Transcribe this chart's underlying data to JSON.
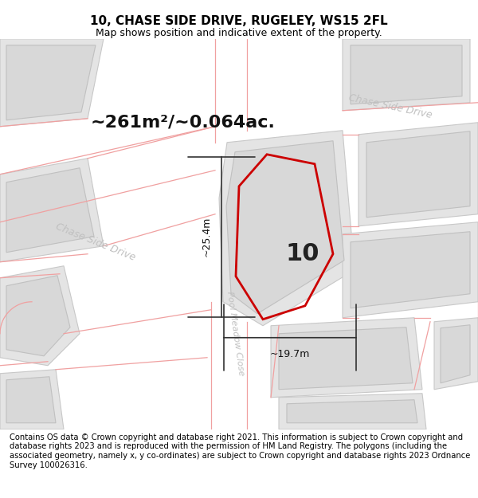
{
  "title": "10, CHASE SIDE DRIVE, RUGELEY, WS15 2FL",
  "subtitle": "Map shows position and indicative extent of the property.",
  "area_text": "~261m²/~0.064ac.",
  "dim_width": "~19.7m",
  "dim_height": "~25.4m",
  "label_number": "10",
  "footer": "Contains OS data © Crown copyright and database right 2021. This information is subject to Crown copyright and database rights 2023 and is reproduced with the permission of HM Land Registry. The polygons (including the associated geometry, namely x, y co-ordinates) are subject to Crown copyright and database rights 2023 Ordnance Survey 100026316.",
  "bg_color": "#f2f2f2",
  "map_bg": "#f2f2f2",
  "parcel_fill": "#e4e4e4",
  "parcel_edge": "#c8c8c8",
  "inner_fill": "#d8d8d8",
  "inner_edge": "#c0c0c0",
  "road_fill": "#ffffff",
  "plot_color": "#cc0000",
  "road_label_color": "#c0c0c0",
  "dim_color": "#333333",
  "red_line_color": "#f0a0a0",
  "title_fontsize": 11,
  "subtitle_fontsize": 9,
  "area_fontsize": 16,
  "footer_fontsize": 7.2,
  "road_label_fontsize": 9
}
